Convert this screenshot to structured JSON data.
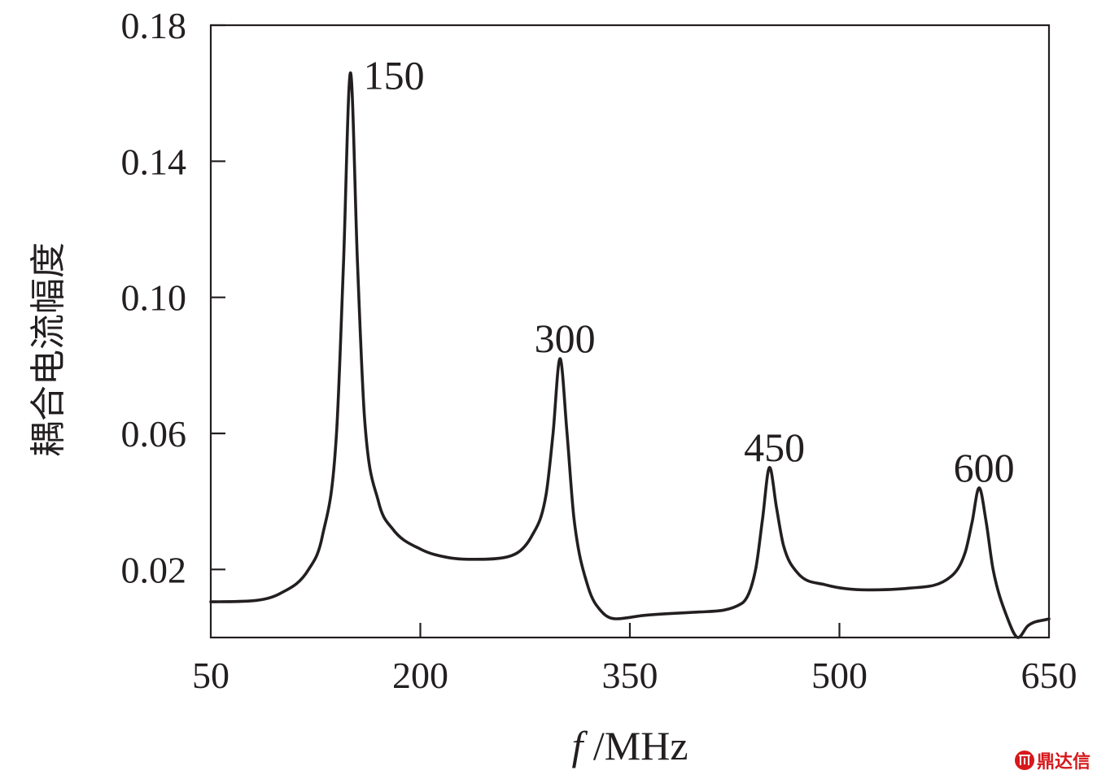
{
  "chart_data": {
    "type": "line",
    "xlabel_italic": "f",
    "xlabel_rest": " /MHz",
    "ylabel": "耦合电流幅度",
    "xlim": [
      50,
      650
    ],
    "ylim": [
      0.0,
      0.18
    ],
    "xticks": [
      50,
      200,
      350,
      500,
      650
    ],
    "yticks": [
      0.02,
      0.06,
      0.1,
      0.14,
      0.18
    ],
    "ytick_labels": [
      "0.02",
      "0.06",
      "0.10",
      "0.14",
      "0.18"
    ],
    "grid": false,
    "series": [
      {
        "color": "#231f20",
        "x": [
          50,
          80,
          100,
          120,
          130,
          140,
          145,
          150,
          155,
          160,
          170,
          180,
          200,
          220,
          240,
          260,
          280,
          290,
          295,
          300,
          305,
          310,
          320,
          330,
          340,
          360,
          400,
          430,
          440,
          445,
          450,
          455,
          460,
          470,
          490,
          520,
          550,
          580,
          590,
          595,
          600,
          605,
          610,
          620,
          628,
          635,
          650
        ],
        "values": [
          0.0105,
          0.0108,
          0.013,
          0.02,
          0.03,
          0.06,
          0.11,
          0.166,
          0.11,
          0.065,
          0.04,
          0.032,
          0.026,
          0.0235,
          0.023,
          0.0235,
          0.03,
          0.042,
          0.06,
          0.082,
          0.06,
          0.035,
          0.015,
          0.0075,
          0.0055,
          0.0065,
          0.0075,
          0.01,
          0.02,
          0.035,
          0.05,
          0.038,
          0.027,
          0.019,
          0.0155,
          0.014,
          0.0145,
          0.018,
          0.025,
          0.034,
          0.044,
          0.034,
          0.02,
          0.006,
          0.0,
          0.0035,
          0.0055
        ]
      }
    ],
    "peak_labels": [
      {
        "x": 150,
        "y": 0.166,
        "text": "150"
      },
      {
        "x": 300,
        "y": 0.082,
        "text": "300"
      },
      {
        "x": 450,
        "y": 0.05,
        "text": "450"
      },
      {
        "x": 600,
        "y": 0.044,
        "text": "600"
      }
    ]
  },
  "watermark": {
    "text": "鼎达信",
    "color": "#d7191c",
    "icon": "red-circle-logo-icon"
  }
}
